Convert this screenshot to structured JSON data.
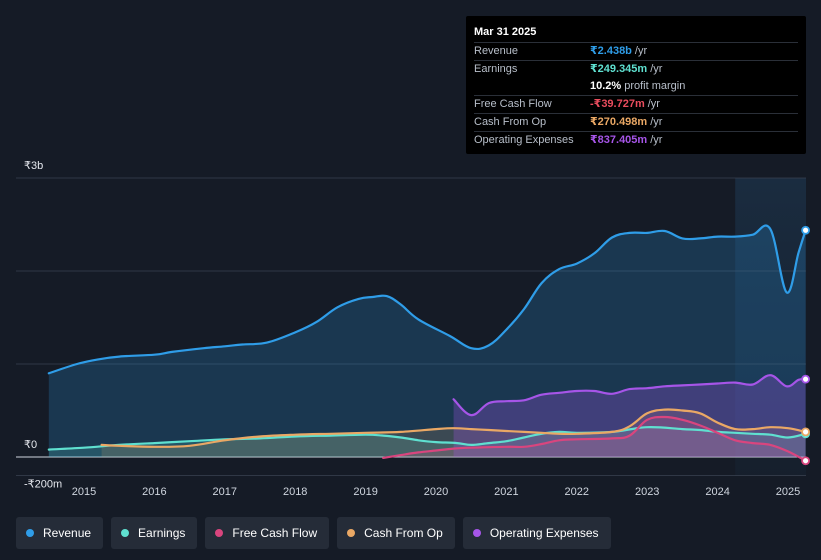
{
  "tooltip": {
    "date": "Mar 31 2025",
    "rows": [
      {
        "label": "Revenue",
        "value": "₹2.438b",
        "unit": "/yr",
        "color": "#2f9de8"
      },
      {
        "label": "Earnings",
        "value": "₹249.345m",
        "unit": "/yr",
        "color": "#5fe0d0"
      },
      {
        "label": "",
        "value": "10.2%",
        "unit": "profit margin",
        "color": "#ffffff"
      },
      {
        "label": "Free Cash Flow",
        "value": "-₹39.727m",
        "unit": "/yr",
        "color": "#ea4d5e"
      },
      {
        "label": "Cash From Op",
        "value": "₹270.498m",
        "unit": "/yr",
        "color": "#eaa865"
      },
      {
        "label": "Operating Expenses",
        "value": "₹837.405m",
        "unit": "/yr",
        "color": "#a655e8"
      }
    ]
  },
  "legend": [
    {
      "label": "Revenue",
      "color": "#2f9de8"
    },
    {
      "label": "Earnings",
      "color": "#5fe0d0"
    },
    {
      "label": "Free Cash Flow",
      "color": "#d9457e"
    },
    {
      "label": "Cash From Op",
      "color": "#eaa865"
    },
    {
      "label": "Operating Expenses",
      "color": "#a655e8"
    }
  ],
  "chart_data": {
    "type": "area",
    "title": "",
    "xlabel": "",
    "ylabel": "",
    "y_tick_labels": [
      "₹3b",
      "₹0",
      "-₹200m"
    ],
    "ylim": [
      -200,
      3000
    ],
    "xlim": [
      2014.5,
      2025.25
    ],
    "x_tick_labels": [
      "2015",
      "2016",
      "2017",
      "2018",
      "2019",
      "2020",
      "2021",
      "2022",
      "2023",
      "2024",
      "2025"
    ],
    "x_ticks": [
      2015,
      2016,
      2017,
      2018,
      2019,
      2020,
      2021,
      2022,
      2023,
      2024,
      2025
    ],
    "forecast_region_start": 2024.25,
    "units": "₹ millions",
    "series": [
      {
        "name": "Revenue",
        "color": "#2f9de8",
        "x": [
          2014.5,
          2014.9,
          2015.2,
          2015.5,
          2016.0,
          2016.25,
          2016.7,
          2017.0,
          2017.25,
          2017.6,
          2018.0,
          2018.3,
          2018.6,
          2018.9,
          2019.1,
          2019.3,
          2019.5,
          2019.75,
          2020.2,
          2020.5,
          2020.75,
          2021.0,
          2021.25,
          2021.5,
          2021.75,
          2022.0,
          2022.25,
          2022.5,
          2022.75,
          2023.0,
          2023.25,
          2023.5,
          2023.75,
          2024.0,
          2024.25,
          2024.5,
          2024.75,
          2024.98,
          2025.15,
          2025.25
        ],
        "values": [
          900,
          1000,
          1050,
          1080,
          1100,
          1130,
          1170,
          1190,
          1210,
          1230,
          1340,
          1450,
          1610,
          1700,
          1720,
          1730,
          1640,
          1480,
          1300,
          1170,
          1200,
          1370,
          1590,
          1870,
          2020,
          2080,
          2190,
          2360,
          2410,
          2410,
          2430,
          2350,
          2350,
          2370,
          2370,
          2390,
          2450,
          1770,
          2200,
          2438
        ]
      },
      {
        "name": "Earnings",
        "color": "#5fe0d0",
        "x": [
          2014.5,
          2015.0,
          2015.5,
          2016.0,
          2016.5,
          2017.0,
          2017.5,
          2018.0,
          2018.5,
          2019.0,
          2019.25,
          2019.5,
          2019.75,
          2020.0,
          2020.3,
          2020.5,
          2020.75,
          2021.0,
          2021.25,
          2021.5,
          2021.75,
          2022.0,
          2022.5,
          2023.0,
          2023.5,
          2023.75,
          2024.0,
          2024.25,
          2024.5,
          2024.75,
          2025.0,
          2025.25
        ],
        "values": [
          80,
          100,
          130,
          150,
          170,
          190,
          200,
          220,
          230,
          240,
          230,
          210,
          180,
          160,
          150,
          130,
          150,
          170,
          210,
          250,
          270,
          260,
          270,
          320,
          300,
          290,
          270,
          260,
          250,
          240,
          210,
          249
        ]
      },
      {
        "name": "Free Cash Flow",
        "color": "#d9457e",
        "x": [
          2019.25,
          2019.5,
          2019.75,
          2020.0,
          2020.25,
          2020.5,
          2021.0,
          2021.25,
          2021.5,
          2021.75,
          2022.0,
          2022.5,
          2022.75,
          2023.0,
          2023.25,
          2023.5,
          2023.75,
          2024.0,
          2024.25,
          2024.5,
          2024.75,
          2025.0,
          2025.25
        ],
        "values": [
          -10,
          20,
          50,
          70,
          90,
          100,
          110,
          110,
          140,
          180,
          190,
          200,
          230,
          400,
          430,
          400,
          340,
          260,
          180,
          150,
          130,
          60,
          -40
        ]
      },
      {
        "name": "Cash From Op",
        "color": "#eaa865",
        "x": [
          2015.25,
          2015.5,
          2016.0,
          2016.5,
          2017.0,
          2017.5,
          2018.0,
          2018.5,
          2019.0,
          2019.5,
          2020.0,
          2020.25,
          2020.5,
          2020.75,
          2021.0,
          2021.25,
          2021.5,
          2021.75,
          2022.0,
          2022.5,
          2022.75,
          2023.0,
          2023.25,
          2023.5,
          2023.75,
          2024.0,
          2024.25,
          2024.5,
          2024.75,
          2025.0,
          2025.25
        ],
        "values": [
          130,
          120,
          110,
          120,
          180,
          220,
          240,
          250,
          260,
          270,
          300,
          310,
          300,
          290,
          280,
          270,
          260,
          250,
          250,
          270,
          330,
          470,
          510,
          500,
          470,
          370,
          300,
          300,
          320,
          310,
          270
        ]
      },
      {
        "name": "Operating Expenses",
        "color": "#a655e8",
        "x": [
          2020.25,
          2020.5,
          2020.75,
          2021.0,
          2021.25,
          2021.5,
          2021.75,
          2022.0,
          2022.25,
          2022.5,
          2022.75,
          2023.0,
          2023.25,
          2023.5,
          2023.75,
          2024.0,
          2024.25,
          2024.5,
          2024.75,
          2024.98,
          2025.15,
          2025.25
        ],
        "values": [
          620,
          450,
          580,
          600,
          610,
          670,
          690,
          710,
          710,
          680,
          730,
          740,
          760,
          770,
          780,
          790,
          800,
          780,
          880,
          760,
          830,
          837
        ]
      }
    ]
  }
}
